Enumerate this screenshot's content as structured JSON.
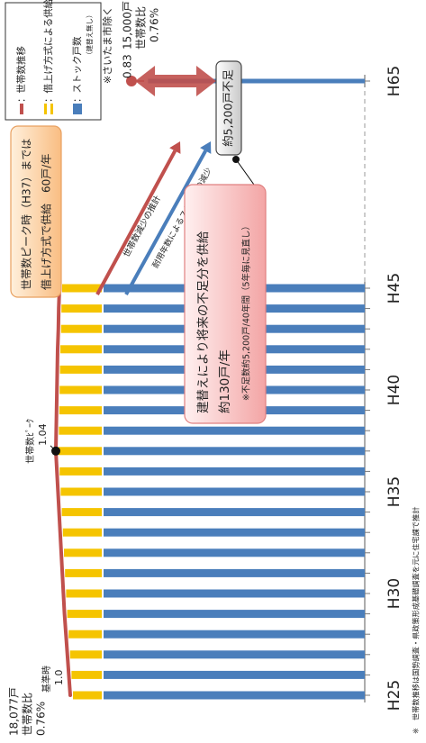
{
  "chart_data": {
    "type": "bar_line",
    "categories": [
      "H25",
      null,
      null,
      null,
      null,
      "H30",
      null,
      null,
      null,
      null,
      "H35",
      null,
      null,
      null,
      null,
      "H40",
      null,
      null,
      null,
      null,
      "H45",
      "H65"
    ],
    "series": [
      {
        "kind": "line",
        "color": "#c0504d",
        "values": [
          1.0,
          1.004,
          1.008,
          1.012,
          1.016,
          1.019,
          1.022,
          1.025,
          1.028,
          1.031,
          1.034,
          1.037,
          1.04,
          1.039,
          1.038,
          1.037,
          1.036,
          1.035,
          1.033,
          1.032,
          1.03,
          0.83
        ],
        "value_labels": [
          "1.0",
          null,
          null,
          null,
          null,
          null,
          null,
          null,
          null,
          null,
          null,
          null,
          "1.04",
          null,
          null,
          null,
          null,
          null,
          null,
          null,
          null,
          "0.83"
        ]
      },
      {
        "kind": "bar",
        "color": "#4a7ebb",
        "values": [
          18077,
          18077,
          18077,
          18077,
          18077,
          18077,
          18077,
          18077,
          18077,
          18077,
          18077,
          18077,
          18077,
          18077,
          18077,
          18077,
          18077,
          18077,
          18077,
          18077,
          18077,
          15000
        ],
        "value_labels": [
          "18,077戸",
          null,
          null,
          null,
          null,
          null,
          null,
          null,
          null,
          null,
          null,
          null,
          null,
          null,
          null,
          null,
          null,
          null,
          null,
          null,
          null,
          "15,000戸"
        ]
      }
    ],
    "legend": [
      {
        "label": "：世帯数推移",
        "color": "#c0504d"
      },
      {
        "label": "：借上げ方式による供給",
        "color": "#f5c400"
      },
      {
        "label": "：ストック戸数",
        "sub": "（建替え無し）",
        "color": "#4a7ebb"
      }
    ],
    "exclusion_note": "※さいたま市除く",
    "base_note": "基準時",
    "peak_note": "世帯数ﾋﾟｰｸ",
    "ratio_note": "世帯数比",
    "start_share": "0.76%",
    "end_share": "0.76%",
    "peak_box": [
      "世帯数ピーク時（H37）までは",
      "借上げ方式で供給　60戸/年"
    ],
    "rebuild_box": [
      "建替えにより将来の不足分を供給",
      "約130戸/年",
      "※不足数約5,200戸/40年間（5年毎に見直し）"
    ],
    "shortage": "約5,200戸不足",
    "trend_arrows": [
      "世帯数減少の推計",
      "耐用年数によるストックの減少"
    ],
    "footnote": "※　世帯数推移は国勢調査・県政策形成基礎調査を元に住宅課で推計"
  }
}
